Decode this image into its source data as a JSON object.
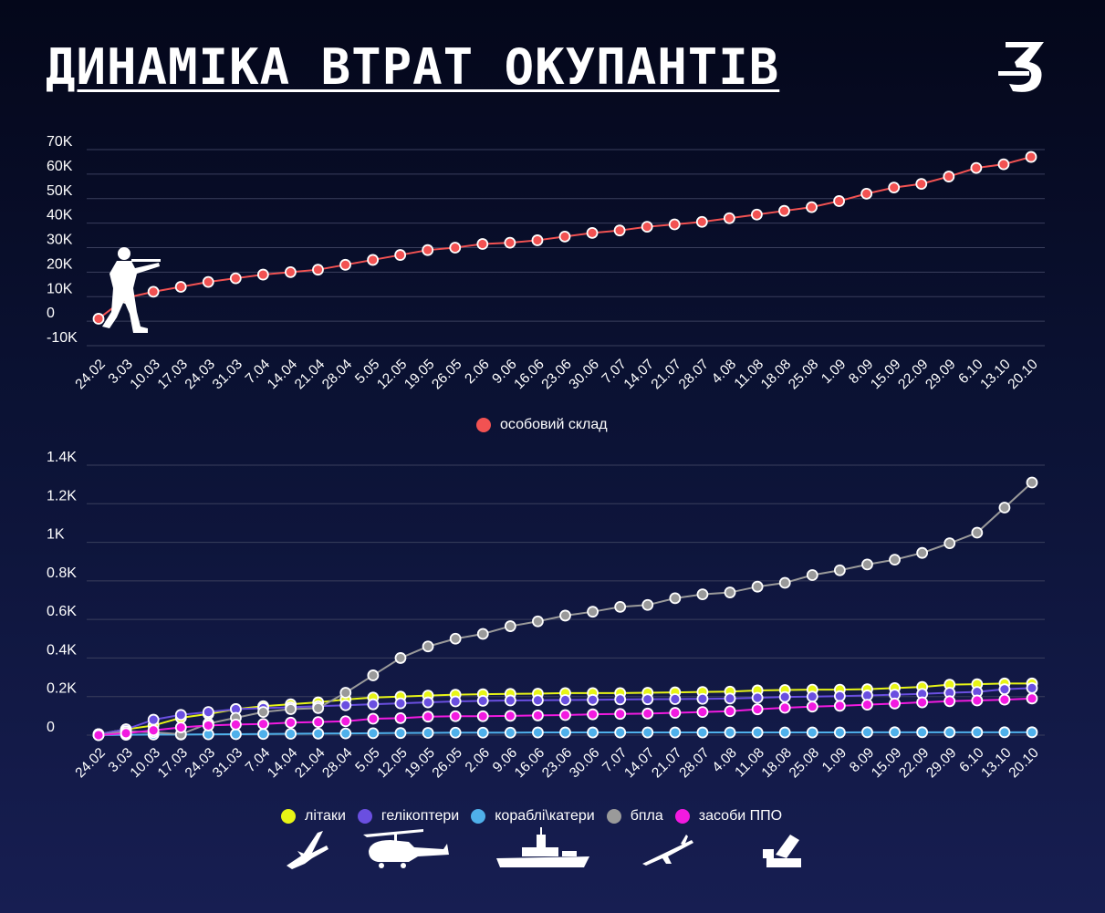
{
  "header": {
    "title": "ДИНАМІКА ВТРАТ ОКУПАНТІВ",
    "logo_text": "З"
  },
  "colors": {
    "personnel": "#f25252",
    "aircraft": "#e8f516",
    "helicopters": "#6a4fe0",
    "ships": "#4fb0ea",
    "drones": "#9a9a9a",
    "air_defense": "#f21ae0",
    "grid": "#3a3f5c"
  },
  "icons": [
    "soldier-icon",
    "plane-icon",
    "helicopter-icon",
    "ship-icon",
    "drone-icon",
    "air-defense-icon"
  ],
  "chart_data": [
    {
      "type": "line",
      "x": [
        "24.02",
        "3.03",
        "10.03",
        "17.03",
        "24.03",
        "31.03",
        "7.04",
        "14.04",
        "21.04",
        "28.04",
        "5.05",
        "12.05",
        "19.05",
        "26.05",
        "2.06",
        "9.06",
        "16.06",
        "23.06",
        "30.06",
        "7.07",
        "14.07",
        "21.07",
        "28.07",
        "4.08",
        "11.08",
        "18.08",
        "25.08",
        "1.09",
        "8.09",
        "15.09",
        "22.09",
        "29.09",
        "6.10",
        "13.10",
        "20.10"
      ],
      "yticks": [
        "70K",
        "60K",
        "50K",
        "40K",
        "30K",
        "20K",
        "10K",
        "0",
        "-10K"
      ],
      "ylim": [
        -10000,
        70000
      ],
      "grid": true,
      "legend_position": "bottom-center",
      "series": [
        {
          "name": "особовий склад",
          "color_key": "personnel",
          "values": [
            1000,
            9500,
            12000,
            14000,
            16000,
            17500,
            19000,
            20000,
            21000,
            23000,
            25000,
            27000,
            29000,
            30000,
            31500,
            32000,
            33000,
            34500,
            36000,
            37000,
            38500,
            39500,
            40500,
            42000,
            43500,
            45000,
            46500,
            49000,
            52000,
            54500,
            56000,
            59000,
            62500,
            64000,
            67000
          ]
        }
      ]
    },
    {
      "type": "line",
      "x": [
        "24.02",
        "3.03",
        "10.03",
        "17.03",
        "24.03",
        "31.03",
        "7.04",
        "14.04",
        "21.04",
        "28.04",
        "5.05",
        "12.05",
        "19.05",
        "26.05",
        "2.06",
        "9.06",
        "16.06",
        "23.06",
        "30.06",
        "7.07",
        "14.07",
        "21.07",
        "28.07",
        "4.08",
        "11.08",
        "18.08",
        "25.08",
        "1.09",
        "8.09",
        "15.09",
        "22.09",
        "29.09",
        "6.10",
        "13.10",
        "20.10"
      ],
      "yticks": [
        "1.4K",
        "1.2K",
        "1K",
        "0.8K",
        "0.6K",
        "0.4K",
        "0.2K",
        "0"
      ],
      "ylim": [
        0,
        1400
      ],
      "grid": true,
      "legend_position": "bottom-center",
      "series": [
        {
          "name": "літаки",
          "color_key": "aircraft",
          "values": [
            5,
            30,
            50,
            90,
            110,
            135,
            150,
            160,
            170,
            185,
            195,
            200,
            205,
            210,
            212,
            214,
            215,
            218,
            218,
            218,
            220,
            222,
            224,
            226,
            232,
            234,
            236,
            236,
            238,
            244,
            250,
            262,
            264,
            268,
            268
          ]
        },
        {
          "name": "гелікоптери",
          "color_key": "helicopters",
          "values": [
            5,
            30,
            80,
            105,
            120,
            135,
            140,
            145,
            150,
            155,
            160,
            165,
            170,
            175,
            178,
            180,
            181,
            182,
            183,
            185,
            186,
            187,
            188,
            190,
            194,
            198,
            200,
            202,
            206,
            210,
            214,
            220,
            224,
            238,
            244
          ]
        },
        {
          "name": "кораблі\\катери",
          "color_key": "ships",
          "values": [
            0,
            2,
            3,
            3,
            4,
            5,
            6,
            7,
            8,
            9,
            10,
            11,
            12,
            13,
            13,
            13,
            14,
            14,
            14,
            14,
            14,
            14,
            14,
            14,
            14,
            14,
            14,
            14,
            15,
            15,
            15,
            15,
            15,
            15,
            15
          ]
        },
        {
          "name": "бпла",
          "color_key": "drones",
          "values": [
            0,
            20,
            15,
            5,
            60,
            90,
            120,
            135,
            140,
            220,
            310,
            400,
            460,
            500,
            525,
            565,
            590,
            620,
            640,
            665,
            675,
            710,
            730,
            740,
            770,
            790,
            830,
            855,
            885,
            910,
            945,
            995,
            1050,
            1180,
            1310
          ]
        },
        {
          "name": "засоби ППО",
          "color_key": "air_defense",
          "values": [
            0,
            10,
            25,
            40,
            50,
            55,
            58,
            65,
            68,
            72,
            85,
            88,
            96,
            98,
            98,
            100,
            102,
            104,
            108,
            110,
            112,
            116,
            120,
            124,
            134,
            142,
            148,
            152,
            158,
            164,
            170,
            176,
            180,
            184,
            190
          ]
        }
      ]
    }
  ]
}
